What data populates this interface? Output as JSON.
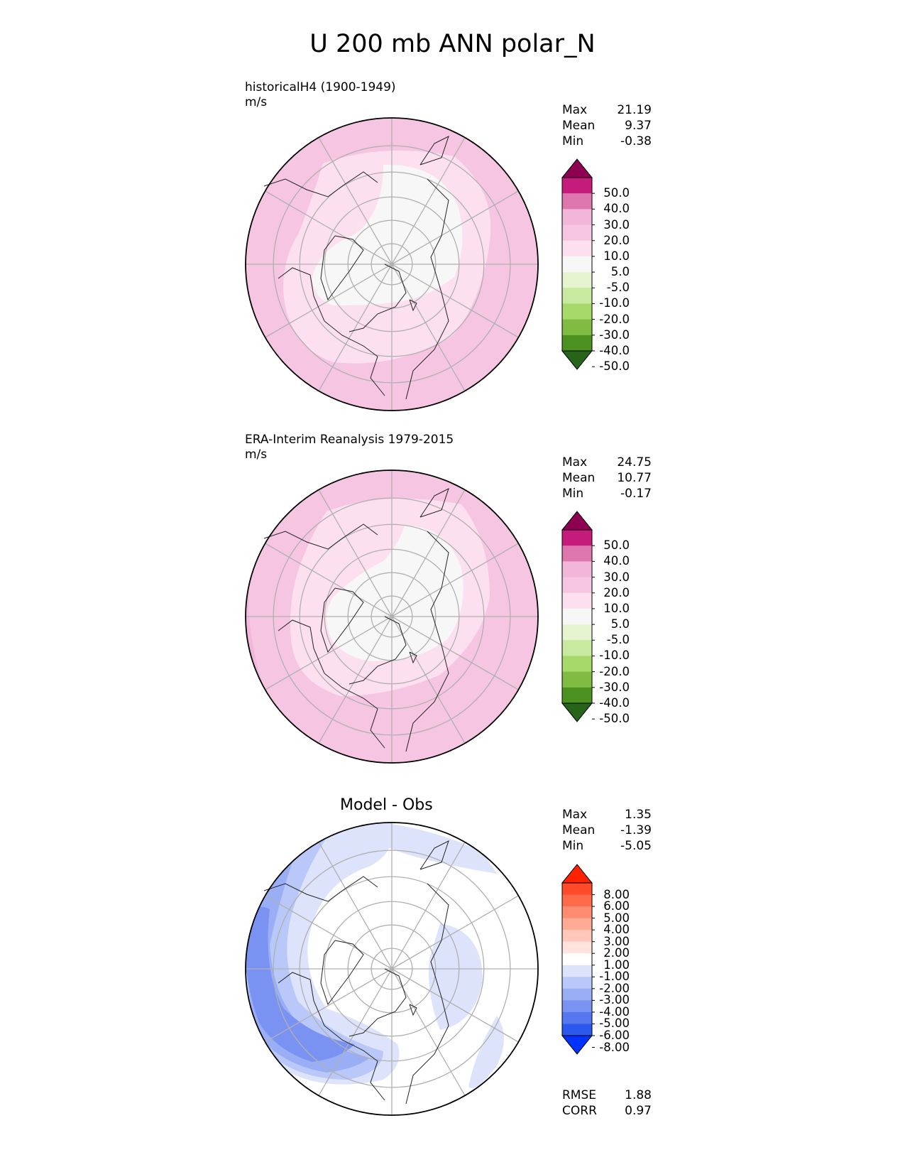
{
  "title": "U 200 mb ANN polar_N",
  "stats_labels": {
    "max": "Max",
    "mean": "Mean",
    "min": "Min",
    "rmse": "RMSE",
    "corr": "CORR"
  },
  "panels": [
    {
      "id": "test",
      "title": "historicalH4 (1900-1949)",
      "units": "m/s",
      "max": "21.19",
      "mean": "9.37",
      "min": "-0.38"
    },
    {
      "id": "ref",
      "title": "ERA-Interim Reanalysis 1979-2015",
      "units": "m/s",
      "max": "24.75",
      "mean": "10.77",
      "min": "-0.17"
    },
    {
      "id": "diff",
      "title": "Model - Obs",
      "units": "",
      "max": "1.35",
      "mean": "-1.39",
      "min": "-5.05",
      "rmse": "1.88",
      "corr": "0.97"
    }
  ],
  "colorbars": {
    "field": {
      "labels": [
        "50.0",
        "40.0",
        "30.0",
        "20.0",
        "10.0",
        "5.0",
        "-5.0",
        "-10.0",
        "-20.0",
        "-30.0",
        "-40.0",
        "-50.0"
      ],
      "colors": [
        "#8e0152",
        "#c51b7d",
        "#de77ae",
        "#f1b6da",
        "#f5c5e1",
        "#fde0ef",
        "#f7f7f7",
        "#e6f5d0",
        "#c7e9a0",
        "#a6d96a",
        "#7fbc41",
        "#4d9221",
        "#276419"
      ]
    },
    "diff": {
      "labels": [
        "8.00",
        "6.00",
        "5.00",
        "4.00",
        "3.00",
        "2.00",
        "1.00",
        "-1.00",
        "-2.00",
        "-3.00",
        "-4.00",
        "-5.00",
        "-6.00",
        "-8.00"
      ],
      "colors": [
        "#ff2200",
        "#ff4b2b",
        "#ff6a4a",
        "#ff8c70",
        "#ffaa95",
        "#ffc8ba",
        "#ffe3dc",
        "#ffffff",
        "#dde3fb",
        "#bac8f9",
        "#9aaef6",
        "#7a93f3",
        "#5577f0",
        "#2d58ee",
        "#0033ff"
      ]
    }
  },
  "chart_data": [
    {
      "type": "heatmap",
      "projection": "north-polar-stereographic",
      "title": "historicalH4 (1900-1949)",
      "units": "m/s",
      "stats": {
        "max": 21.19,
        "mean": 9.37,
        "min": -0.38
      },
      "levels": [
        -50,
        -40,
        -30,
        -20,
        -10,
        -5,
        5,
        10,
        20,
        30,
        40,
        50
      ]
    },
    {
      "type": "heatmap",
      "projection": "north-polar-stereographic",
      "title": "ERA-Interim Reanalysis 1979-2015",
      "units": "m/s",
      "stats": {
        "max": 24.75,
        "mean": 10.77,
        "min": -0.17
      },
      "levels": [
        -50,
        -40,
        -30,
        -20,
        -10,
        -5,
        5,
        10,
        20,
        30,
        40,
        50
      ]
    },
    {
      "type": "heatmap",
      "projection": "north-polar-stereographic",
      "title": "Model - Obs",
      "stats": {
        "max": 1.35,
        "mean": -1.39,
        "min": -5.05,
        "rmse": 1.88,
        "corr": 0.97
      },
      "levels": [
        -8,
        -6,
        -5,
        -4,
        -3,
        -2,
        -1,
        1,
        2,
        3,
        4,
        5,
        6,
        8
      ]
    }
  ]
}
